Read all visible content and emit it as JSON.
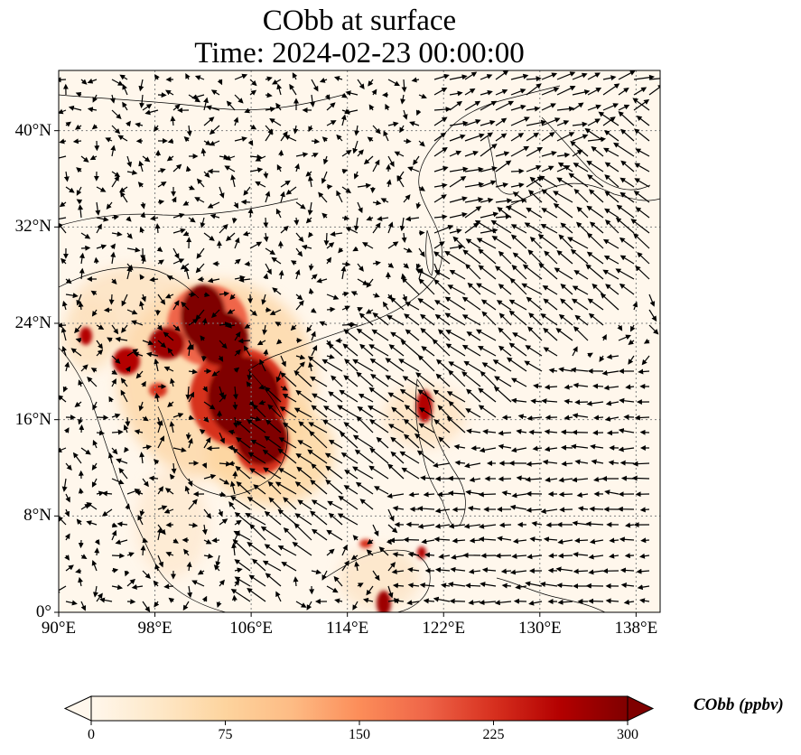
{
  "title": {
    "line1": "CObb at surface",
    "line2": "Time: 2024-02-23 00:00:00"
  },
  "map": {
    "lon_range": [
      90,
      140
    ],
    "lat_range": [
      0,
      45
    ],
    "x_ticks": [
      "90°E",
      "98°E",
      "106°E",
      "114°E",
      "122°E",
      "130°E",
      "138°E"
    ],
    "x_tick_values": [
      90,
      98,
      106,
      114,
      122,
      130,
      138
    ],
    "y_ticks": [
      "0°",
      "8°N",
      "16°N",
      "24°N",
      "32°N",
      "40°N"
    ],
    "y_tick_values": [
      0,
      8,
      16,
      24,
      32,
      40
    ],
    "gridlines": "dotted",
    "field_variable": "CObb",
    "vectors": "surface wind arrows"
  },
  "colorbar": {
    "label": "CObb (ppbv)",
    "ticks": [
      "0",
      "75",
      "150",
      "225",
      "300"
    ],
    "tick_values": [
      0,
      75,
      150,
      225,
      300
    ],
    "range": [
      0,
      300
    ],
    "extend": "both",
    "colormap": "OrRd",
    "colors": [
      "#fff7ec",
      "#fee8c8",
      "#fdd49e",
      "#fdbb84",
      "#fc8d59",
      "#ef6548",
      "#d7301f",
      "#b30000",
      "#7f0000"
    ]
  }
}
